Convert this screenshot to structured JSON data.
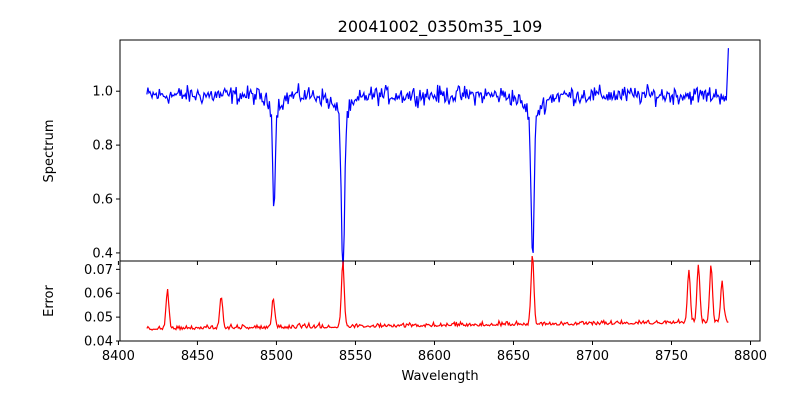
{
  "chart_data": [
    {
      "type": "line",
      "title": "20041002_0350m35_109",
      "ylabel": "Spectrum",
      "xlabel": "",
      "xlim": [
        8401,
        8806
      ],
      "ylim": [
        0.37,
        1.19
      ],
      "yticks": [
        0.4,
        0.6,
        0.8,
        1.0
      ],
      "ytick_labels": [
        "0.4",
        "0.6",
        "0.8",
        "1.0"
      ],
      "grid": false,
      "series": [
        {
          "color": "#0000ff",
          "x_range": [
            8418,
            8786
          ],
          "baseline": 0.985,
          "noise": 0.05,
          "features": [
            {
              "center": 8498.5,
              "depth": 0.36,
              "width": 0.8
            },
            {
              "center": 8542.1,
              "depth": 0.58,
              "width": 1.0
            },
            {
              "center": 8662.1,
              "depth": 0.53,
              "width": 1.0
            }
          ],
          "end_value": 1.16
        }
      ]
    },
    {
      "type": "line",
      "title": "",
      "ylabel": "Error",
      "xlabel": "Wavelength",
      "xlim": [
        8401,
        8806
      ],
      "ylim": [
        0.04,
        0.0735
      ],
      "xticks": [
        8400,
        8450,
        8500,
        8550,
        8600,
        8650,
        8700,
        8750,
        8800
      ],
      "xtick_labels": [
        "8400",
        "8450",
        "8500",
        "8550",
        "8600",
        "8650",
        "8700",
        "8750",
        "8800"
      ],
      "yticks": [
        0.04,
        0.05,
        0.06,
        0.07
      ],
      "ytick_labels": [
        "0.04",
        "0.05",
        "0.06",
        "0.07"
      ],
      "grid": false,
      "series": [
        {
          "color": "#ff0000",
          "x_range": [
            8418,
            8786
          ],
          "baseline_start": 0.0445,
          "baseline_end": 0.0475,
          "noise": 0.0025,
          "peaks": [
            {
              "center": 8431,
              "height": 0.0605
            },
            {
              "center": 8465,
              "height": 0.058
            },
            {
              "center": 8498,
              "height": 0.0565
            },
            {
              "center": 8542,
              "height": 0.0715
            },
            {
              "center": 8662,
              "height": 0.0735
            },
            {
              "center": 8761,
              "height": 0.066
            },
            {
              "center": 8767,
              "height": 0.069
            },
            {
              "center": 8775,
              "height": 0.0675
            },
            {
              "center": 8782,
              "height": 0.062
            }
          ]
        }
      ]
    }
  ]
}
